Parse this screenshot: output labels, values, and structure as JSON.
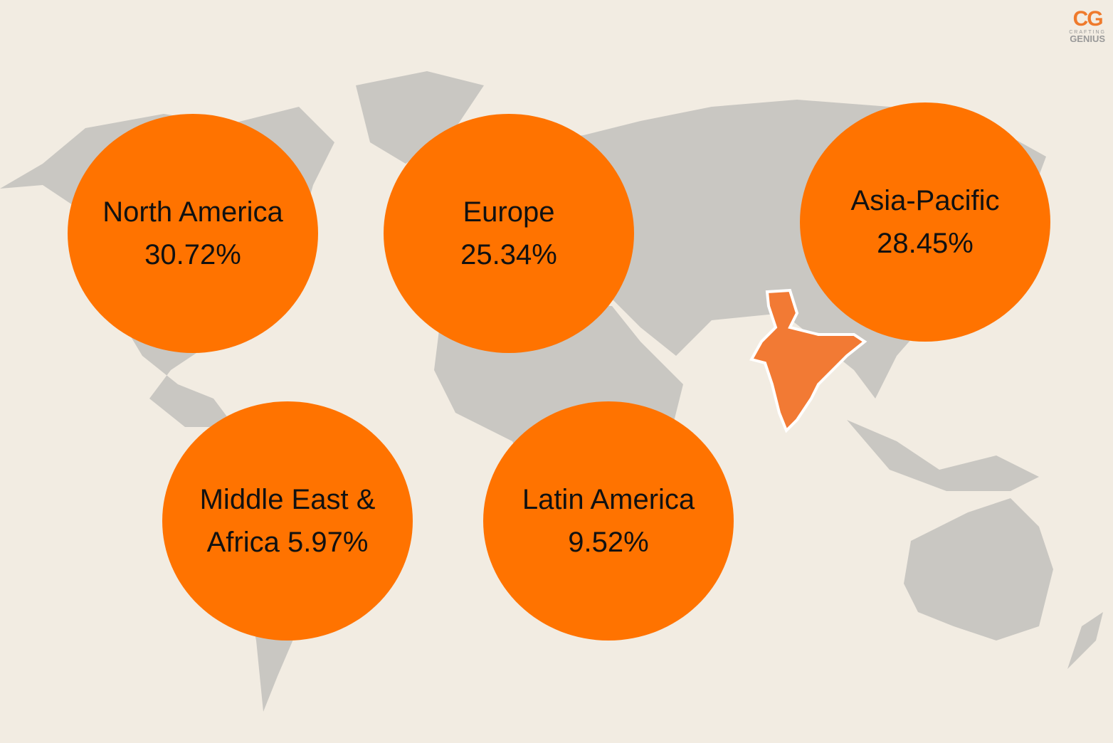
{
  "logo": {
    "mark": "CG",
    "line1": "CRAFTING",
    "line2": "GENIUS"
  },
  "regions": [
    {
      "name": "North America",
      "share": "30.72%"
    },
    {
      "name": "Europe",
      "share": "25.34%"
    },
    {
      "name": "Asia-Pacific",
      "share": "28.45%"
    },
    {
      "name": "Middle East &",
      "share": "Africa 5.97%"
    },
    {
      "name": "Latin America",
      "share": "9.52%"
    }
  ]
}
